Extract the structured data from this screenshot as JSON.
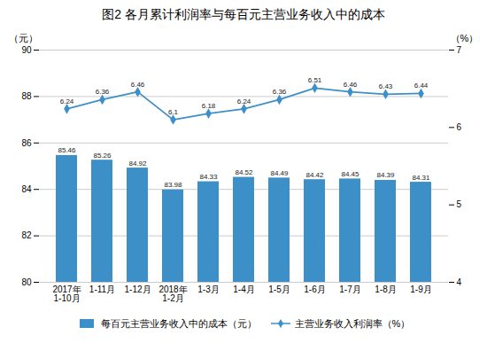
{
  "chart_data": {
    "type": "bar",
    "title": "图2 各月累计利润率与每百元主营业务收入中的成本",
    "categories": [
      "2017年\n1-10月",
      "1-11月",
      "1-12月",
      "2018年\n1-2月",
      "1-3月",
      "1-4月",
      "1-5月",
      "1-6月",
      "1-7月",
      "1-8月",
      "1-9月"
    ],
    "series": [
      {
        "name": "每百元主营业务收入中的成本（元）",
        "type": "bar",
        "color": "#3d8fc8",
        "values": [
          85.46,
          85.26,
          84.92,
          83.98,
          84.33,
          84.52,
          84.49,
          84.42,
          84.45,
          84.39,
          84.31
        ]
      },
      {
        "name": "主营业务收入利润率（%）",
        "type": "line",
        "color": "#3d8fc8",
        "marker": "diamond",
        "axis": "y2",
        "values": [
          6.24,
          6.36,
          6.46,
          6.1,
          6.18,
          6.24,
          6.36,
          6.51,
          6.46,
          6.43,
          6.44
        ]
      }
    ],
    "ylabel": "（元）",
    "y2label": "（%）",
    "ylim": [
      80,
      90
    ],
    "yticks": [
      80,
      82,
      84,
      86,
      88,
      90
    ],
    "y2lim": [
      4,
      7
    ],
    "y2ticks": [
      4,
      5,
      6,
      7
    ],
    "grid": true,
    "legend": "bottom",
    "data_labels": true
  }
}
